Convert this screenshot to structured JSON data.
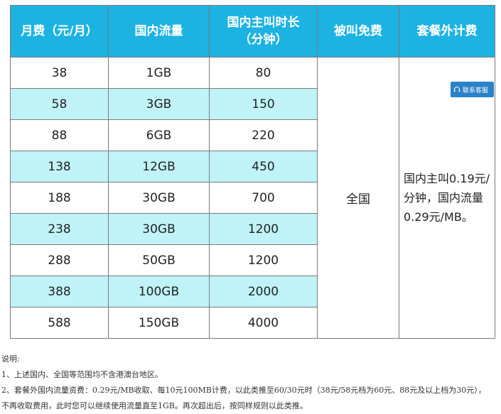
{
  "table": {
    "headers": {
      "monthly_fee": "月费（元/月）",
      "domestic_data": "国内流量",
      "call_minutes_l1": "国内主叫时长",
      "call_minutes_l2": "（分钟）",
      "incoming_free": "被叫免费",
      "overage": "套餐外计费"
    },
    "rows": [
      {
        "fee": "38",
        "data": "1GB",
        "minutes": "80"
      },
      {
        "fee": "58",
        "data": "3GB",
        "minutes": "150"
      },
      {
        "fee": "88",
        "data": "6GB",
        "minutes": "220"
      },
      {
        "fee": "138",
        "data": "12GB",
        "minutes": "450"
      },
      {
        "fee": "188",
        "data": "30GB",
        "minutes": "700"
      },
      {
        "fee": "238",
        "data": "30GB",
        "minutes": "1200"
      },
      {
        "fee": "288",
        "data": "50GB",
        "minutes": "1200"
      },
      {
        "fee": "388",
        "data": "100GB",
        "minutes": "2000"
      },
      {
        "fee": "588",
        "data": "150GB",
        "minutes": "4000"
      }
    ],
    "incoming_free_value": "全国",
    "overage_value": "国内主叫0.19元/分钟，国内流量0.29元/MB。"
  },
  "customer_service_label": "联系客服",
  "notes": {
    "title": "说明:",
    "line1": "1、上述国内、全国等范围均不含港澳台地区。",
    "line2": "2、套餐外国内流量资费：0.29元/MB收取、每10元100MB计费，以此类推至60/30元时（38元/58元档为60元、88元及以上档为30元），",
    "line3": "不再收取费用，此时您可以继续使用流量直至1GB。再次超出后，按同样规则以此类推。"
  },
  "colors": {
    "header_bg": "#1cb3e3",
    "alt_row_bg": "#bff3f8",
    "badge_bg": "#2a82c9"
  }
}
